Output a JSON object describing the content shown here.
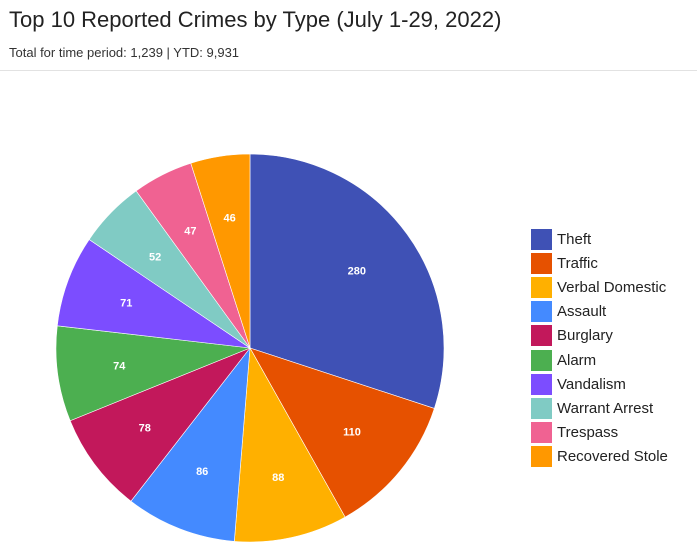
{
  "header": {
    "title": "Top 10 Reported Crimes by Type (July 1-29, 2022)",
    "subtitle": "Total for time period: 1,239 | YTD: 9,931"
  },
  "chart_data": {
    "type": "pie",
    "title": "Top 10 Reported Crimes by Type (July 1-29, 2022)",
    "subtitle": "Total for time period: 1,239 | YTD: 9,931",
    "categories": [
      "Theft",
      "Traffic",
      "Verbal Domestic",
      "Assault",
      "Burglary",
      "Alarm",
      "Vandalism",
      "Warrant Arrest",
      "Trespass",
      "Recovered Stole"
    ],
    "values": [
      280,
      110,
      88,
      86,
      78,
      74,
      71,
      52,
      47,
      46
    ],
    "colors": [
      "#3f51b5",
      "#e65100",
      "#ffb000",
      "#448aff",
      "#c2185b",
      "#4caf50",
      "#7c4dff",
      "#80cbc4",
      "#f06292",
      "#ff9800"
    ],
    "data_labels": [
      "280",
      "110",
      "88",
      "86",
      "78",
      "74",
      "71",
      "52",
      "47",
      "46"
    ],
    "legend_position": "right",
    "start_angle_deg": 0,
    "direction": "clockwise"
  },
  "legend": {
    "items": [
      {
        "label": "Theft",
        "color": "#3f51b5"
      },
      {
        "label": "Traffic",
        "color": "#e65100"
      },
      {
        "label": "Verbal Domestic",
        "color": "#ffb000"
      },
      {
        "label": "Assault",
        "color": "#448aff"
      },
      {
        "label": "Burglary",
        "color": "#c2185b"
      },
      {
        "label": "Alarm",
        "color": "#4caf50"
      },
      {
        "label": "Vandalism",
        "color": "#7c4dff"
      },
      {
        "label": "Warrant Arrest",
        "color": "#80cbc4"
      },
      {
        "label": "Trespass",
        "color": "#f06292"
      },
      {
        "label": "Recovered Stole",
        "color": "#ff9800"
      }
    ]
  }
}
